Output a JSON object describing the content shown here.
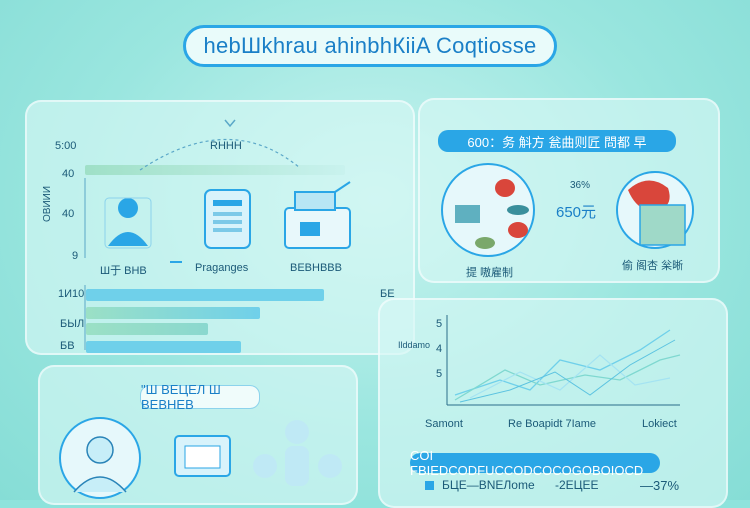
{
  "title": "hebШkhrau ahinbhКiiA Coqtiosse",
  "left_panel": {
    "axis_labels": [
      "5:00",
      "40",
      "ОВИИИ",
      "40",
      "9"
    ],
    "top_label": "RНHH",
    "icon_labels": [
      "Ш于 ВНВ",
      "Praganges",
      "ВЕВНВВВ"
    ],
    "bar_labels": [
      "1И10",
      "БЫЛ",
      "БВ"
    ],
    "bar_right_label": "БЕ",
    "bars": [
      0.82,
      0.6,
      0.42
    ]
  },
  "right_top_panel": {
    "header": "600：务 斛方 瓮曲则匠 問都 早",
    "percent_label": "36%",
    "value_label": "650元",
    "caption_left": "提 嗷雇制",
    "caption_right": "偷 阁杏 枀晰"
  },
  "right_bottom_panel": {
    "y_ticks": [
      "5",
      "4",
      "5"
    ],
    "ylabel": "Ilddamo",
    "x_labels": [
      "Samont",
      "Re Boapidt 7Iame",
      "Lokiect"
    ],
    "banner": "COI FBIEDCODFUCCODCOCOGOBOIOCD",
    "footer_left": "БЦЕ―ВNEЛome",
    "footer_mid": "-2ЕЦЕЕ",
    "footer_right": "―37%"
  },
  "left_bottom_panel": {
    "banner": "\"Ш ВЕЦЕЛ Ш ВЕВНЕВ"
  },
  "colors": {
    "accent": "#2aa6e6",
    "bar": "#6fd0ea",
    "teal": "#8ee3dc"
  }
}
